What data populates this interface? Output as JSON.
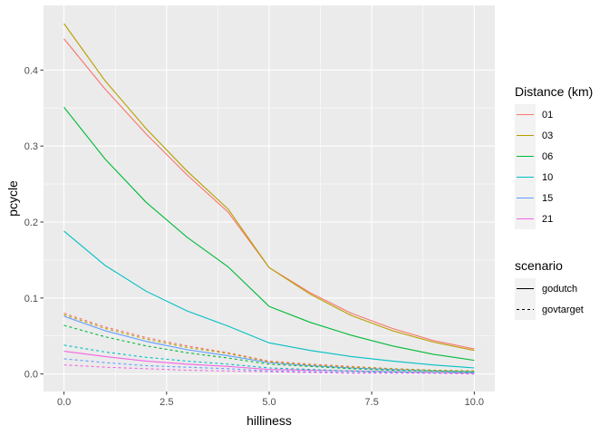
{
  "chart_data": {
    "type": "line",
    "xlabel": "hilliness",
    "ylabel": "pcycle",
    "xlim": [
      -0.5,
      10.5
    ],
    "ylim": [
      -0.023,
      0.485
    ],
    "x_ticks": [
      0,
      2.5,
      5,
      7.5,
      10
    ],
    "x_tick_labels": [
      "0.0",
      "2.5",
      "5.0",
      "7.5",
      "10.0"
    ],
    "y_ticks": [
      0,
      0.1,
      0.2,
      0.3,
      0.4
    ],
    "y_tick_labels": [
      "0.0",
      "0.1",
      "0.2",
      "0.3",
      "0.4"
    ],
    "grid": true,
    "legend_position": "right",
    "legends": [
      {
        "title": "Distance (km)",
        "kind": "color",
        "entries": [
          {
            "label": "01",
            "color": "#F8766D"
          },
          {
            "label": "03",
            "color": "#B79F00"
          },
          {
            "label": "06",
            "color": "#00BA38"
          },
          {
            "label": "10",
            "color": "#00BFC4"
          },
          {
            "label": "15",
            "color": "#619CFF"
          },
          {
            "label": "21",
            "color": "#F564E3"
          }
        ]
      },
      {
        "title": "scenario",
        "kind": "linetype",
        "entries": [
          {
            "label": "godutch",
            "dash": "solid"
          },
          {
            "label": "govtarget",
            "dash": "dotted"
          }
        ]
      }
    ],
    "series": [
      {
        "distance": "01",
        "scenario": "godutch",
        "color": "#F8766D",
        "dash": "solid",
        "x": [
          0,
          1,
          2,
          3,
          4,
          5,
          6,
          7,
          8,
          9,
          10
        ],
        "y": [
          0.441,
          0.375,
          0.316,
          0.262,
          0.213,
          0.14,
          0.107,
          0.08,
          0.06,
          0.044,
          0.033
        ]
      },
      {
        "distance": "03",
        "scenario": "godutch",
        "color": "#B79F00",
        "dash": "solid",
        "x": [
          0,
          1,
          2,
          3,
          4,
          5,
          6,
          7,
          8,
          9,
          10
        ],
        "y": [
          0.461,
          0.386,
          0.323,
          0.267,
          0.217,
          0.14,
          0.105,
          0.077,
          0.057,
          0.042,
          0.031
        ]
      },
      {
        "distance": "06",
        "scenario": "godutch",
        "color": "#00BA38",
        "dash": "solid",
        "x": [
          0,
          1,
          2,
          3,
          4,
          5,
          6,
          7,
          8,
          9,
          10
        ],
        "y": [
          0.351,
          0.283,
          0.226,
          0.18,
          0.141,
          0.089,
          0.068,
          0.051,
          0.037,
          0.026,
          0.018
        ]
      },
      {
        "distance": "10",
        "scenario": "godutch",
        "color": "#00BFC4",
        "dash": "solid",
        "x": [
          0,
          1,
          2,
          3,
          4,
          5,
          6,
          7,
          8,
          9,
          10
        ],
        "y": [
          0.188,
          0.143,
          0.109,
          0.083,
          0.063,
          0.041,
          0.031,
          0.023,
          0.017,
          0.012,
          0.008
        ]
      },
      {
        "distance": "15",
        "scenario": "godutch",
        "color": "#619CFF",
        "dash": "solid",
        "x": [
          0,
          1,
          2,
          3,
          4,
          5,
          6,
          7,
          8,
          9,
          10
        ],
        "y": [
          0.076,
          0.057,
          0.043,
          0.032,
          0.024,
          0.015,
          0.011,
          0.008,
          0.006,
          0.004,
          0.003
        ]
      },
      {
        "distance": "21",
        "scenario": "godutch",
        "color": "#F564E3",
        "dash": "solid",
        "x": [
          0,
          1,
          2,
          3,
          4,
          5,
          6,
          7,
          8,
          9,
          10
        ],
        "y": [
          0.03,
          0.023,
          0.017,
          0.013,
          0.01,
          0.006,
          0.005,
          0.004,
          0.003,
          0.002,
          0.001
        ]
      },
      {
        "distance": "01",
        "scenario": "govtarget",
        "color": "#F8766D",
        "dash": "dotted",
        "x": [
          0,
          1,
          2,
          3,
          4,
          5,
          6,
          7,
          8,
          9,
          10
        ],
        "y": [
          0.08,
          0.062,
          0.048,
          0.037,
          0.028,
          0.017,
          0.013,
          0.01,
          0.007,
          0.005,
          0.004
        ]
      },
      {
        "distance": "03",
        "scenario": "govtarget",
        "color": "#B79F00",
        "dash": "dotted",
        "x": [
          0,
          1,
          2,
          3,
          4,
          5,
          6,
          7,
          8,
          9,
          10
        ],
        "y": [
          0.078,
          0.06,
          0.046,
          0.035,
          0.027,
          0.016,
          0.012,
          0.009,
          0.007,
          0.005,
          0.004
        ]
      },
      {
        "distance": "06",
        "scenario": "govtarget",
        "color": "#00BA38",
        "dash": "dotted",
        "x": [
          0,
          1,
          2,
          3,
          4,
          5,
          6,
          7,
          8,
          9,
          10
        ],
        "y": [
          0.064,
          0.049,
          0.037,
          0.028,
          0.021,
          0.013,
          0.01,
          0.007,
          0.005,
          0.004,
          0.003
        ]
      },
      {
        "distance": "10",
        "scenario": "govtarget",
        "color": "#00BFC4",
        "dash": "dotted",
        "x": [
          0,
          1,
          2,
          3,
          4,
          5,
          6,
          7,
          8,
          9,
          10
        ],
        "y": [
          0.038,
          0.029,
          0.022,
          0.017,
          0.013,
          0.008,
          0.006,
          0.004,
          0.003,
          0.002,
          0.002
        ]
      },
      {
        "distance": "15",
        "scenario": "govtarget",
        "color": "#619CFF",
        "dash": "dotted",
        "x": [
          0,
          1,
          2,
          3,
          4,
          5,
          6,
          7,
          8,
          9,
          10
        ],
        "y": [
          0.02,
          0.015,
          0.011,
          0.009,
          0.007,
          0.004,
          0.003,
          0.002,
          0.002,
          0.001,
          0.001
        ]
      },
      {
        "distance": "21",
        "scenario": "govtarget",
        "color": "#F564E3",
        "dash": "dotted",
        "x": [
          0,
          1,
          2,
          3,
          4,
          5,
          6,
          7,
          8,
          9,
          10
        ],
        "y": [
          0.012,
          0.009,
          0.007,
          0.005,
          0.004,
          0.003,
          0.002,
          0.001,
          0.001,
          0.001,
          0.0
        ]
      }
    ]
  }
}
